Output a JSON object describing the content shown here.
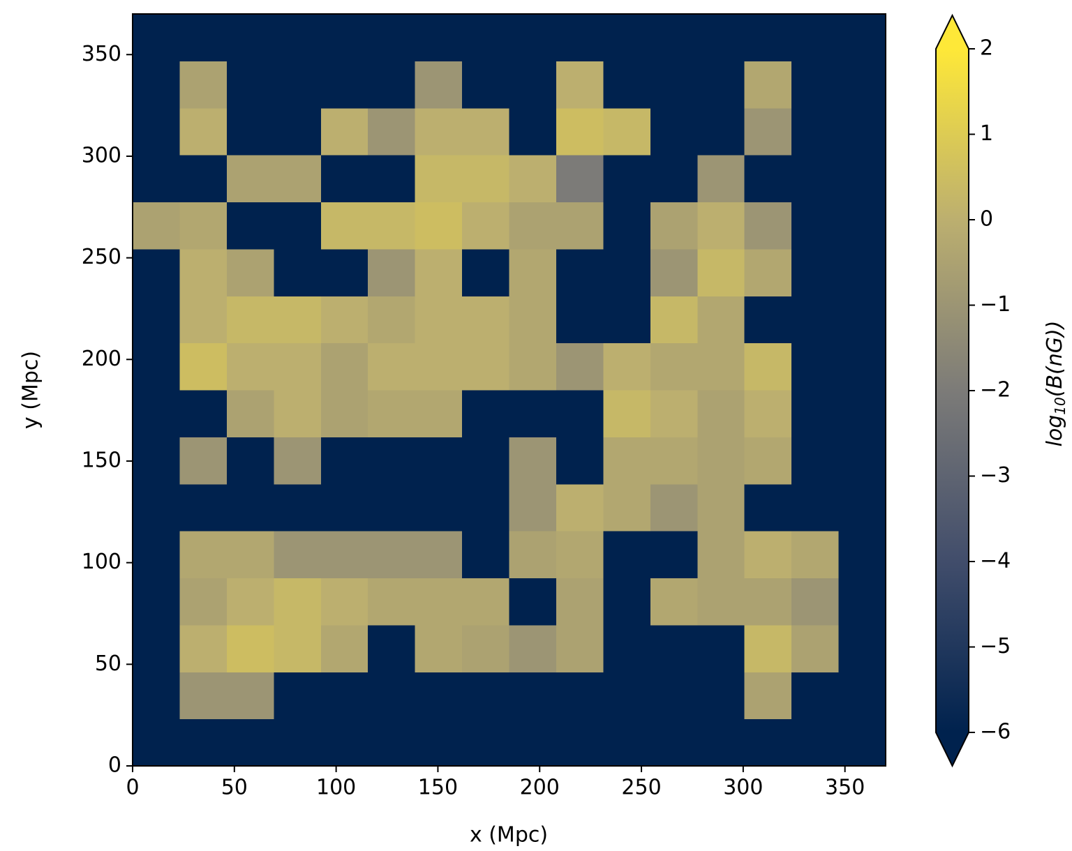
{
  "chart_data": {
    "type": "heatmap",
    "xlabel": "x (Mpc)",
    "ylabel": "y (Mpc)",
    "xlim": [
      0,
      370
    ],
    "ylim": [
      0,
      370
    ],
    "xticks": [
      0,
      50,
      100,
      150,
      200,
      250,
      300,
      350
    ],
    "yticks": [
      0,
      50,
      100,
      150,
      200,
      250,
      300,
      350
    ],
    "xedges": [
      0,
      23.125,
      46.25,
      69.375,
      92.5,
      115.625,
      138.75,
      161.875,
      185,
      208.125,
      231.25,
      254.375,
      277.5,
      300.625,
      323.75,
      346.875,
      370
    ],
    "yedges": [
      0,
      23.125,
      46.25,
      69.375,
      92.5,
      115.625,
      138.75,
      161.875,
      185,
      208.125,
      231.25,
      254.375,
      277.5,
      300.625,
      323.75,
      346.875,
      370
    ],
    "z": [
      [
        -6,
        -6,
        -6,
        -6,
        -6,
        -6,
        -6,
        -6,
        -6,
        -6,
        -6,
        -6,
        -6,
        -6,
        -6,
        -6
      ],
      [
        -6,
        -1,
        -1,
        -6,
        -6,
        -6,
        -6,
        -6,
        -6,
        -6,
        -6,
        -6,
        -6,
        -0.5,
        -6,
        -6
      ],
      [
        -6,
        0,
        0.5,
        0.3,
        -0.3,
        -6,
        -0.3,
        -0.5,
        -1,
        -0.5,
        -6,
        -6,
        -6,
        0.3,
        -0.5,
        -6
      ],
      [
        -6,
        -0.5,
        0,
        0.3,
        0,
        -0.3,
        -0.3,
        -0.3,
        -6,
        -0.5,
        -6,
        -0.3,
        -0.5,
        -0.5,
        -1,
        -6
      ],
      [
        -6,
        -0.3,
        -0.3,
        -1,
        -1,
        -1,
        -1,
        -6,
        -0.5,
        -0.3,
        -6,
        -6,
        -0.5,
        0,
        -0.3,
        -6
      ],
      [
        -6,
        -6,
        -6,
        -6,
        -6,
        -6,
        -6,
        -6,
        -1,
        0,
        -0.3,
        -1,
        -0.5,
        -6,
        -6,
        -6
      ],
      [
        -6,
        -1,
        -6,
        -1,
        -6,
        -6,
        -6,
        -6,
        -1,
        -6,
        -0.3,
        -0.3,
        -0.5,
        -0.3,
        -6,
        -6
      ],
      [
        -6,
        -6,
        -0.5,
        0,
        -0.5,
        -0.3,
        -0.3,
        -6,
        -6,
        -6,
        0.3,
        0,
        -0.5,
        0,
        -6,
        -6
      ],
      [
        -6,
        0.5,
        0,
        0,
        -0.5,
        0,
        0,
        0,
        -0.3,
        -1,
        0,
        -0.3,
        -0.3,
        0.3,
        -6,
        -6
      ],
      [
        -6,
        0,
        0.3,
        0.3,
        0,
        -0.3,
        0,
        0,
        -0.3,
        -6,
        -6,
        0.3,
        -0.3,
        -6,
        -6,
        -6
      ],
      [
        -6,
        0,
        -0.5,
        -6,
        -6,
        -1,
        0,
        -6,
        -0.3,
        -6,
        -6,
        -1,
        0.3,
        -0.3,
        -6,
        -6
      ],
      [
        -0.5,
        -0.3,
        -6,
        -6,
        0.3,
        0.3,
        0.5,
        0,
        -0.5,
        -0.5,
        -6,
        -0.5,
        0,
        -1,
        -6,
        -6
      ],
      [
        -6,
        -6,
        -0.5,
        -0.5,
        -6,
        -6,
        0.3,
        0.3,
        0,
        -2,
        -6,
        -6,
        -1,
        -6,
        -6,
        -6
      ],
      [
        -6,
        0,
        -6,
        -6,
        0,
        -1,
        0,
        0,
        -6,
        0.5,
        0.3,
        -6,
        -6,
        -1,
        -6,
        -6
      ],
      [
        -6,
        -0.5,
        -6,
        -6,
        -6,
        -6,
        -1,
        -6,
        -6,
        0,
        -6,
        -6,
        -6,
        -0.3,
        -6,
        -6
      ],
      [
        -6,
        -6,
        -6,
        -6,
        -6,
        -6,
        -6,
        -6,
        -6,
        -6,
        -6,
        -6,
        -6,
        -6,
        -6,
        -6
      ]
    ],
    "clim": [
      -6,
      2
    ],
    "cmap_colors": [
      "#00224e",
      "#414d6b",
      "#7c7b78",
      "#bcaf6f",
      "#fee838"
    ],
    "extend": "both",
    "cticks": [
      2,
      1,
      0,
      {
        "value": -1,
        "label": "−1"
      },
      {
        "value": -2,
        "label": "−2"
      },
      {
        "value": -3,
        "label": "−3"
      },
      {
        "value": -4,
        "label": "−4"
      },
      {
        "value": -5,
        "label": "−5"
      },
      {
        "value": -6,
        "label": "−6"
      }
    ],
    "clabel": {
      "base": "log",
      "sub": "10",
      "rest": "(B(nG))"
    }
  }
}
